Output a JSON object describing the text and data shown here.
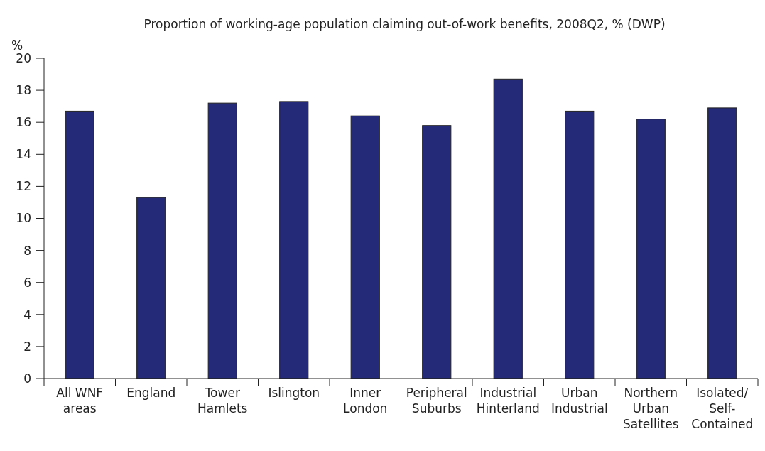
{
  "chart_data": {
    "type": "bar",
    "title": "Proportion of working-age population claiming out-of-work benefits, 2008Q2, % (DWP)",
    "ylabel": "%",
    "categories": [
      "All WNF areas",
      "England",
      "Tower Hamlets",
      "Islington",
      "Inner London",
      "Peripheral Suburbs",
      "Industrial Hinterland",
      "Urban Industrial",
      "Northern Urban Satellites",
      "Isolated/Self-Contained"
    ],
    "values": [
      16.7,
      11.3,
      17.2,
      17.3,
      16.4,
      15.8,
      18.7,
      16.7,
      16.2,
      16.9
    ],
    "color": "#252a78",
    "ylim": [
      0,
      20
    ],
    "yticks": [
      0,
      2,
      4,
      6,
      8,
      10,
      12,
      14,
      16,
      18,
      20
    ]
  }
}
